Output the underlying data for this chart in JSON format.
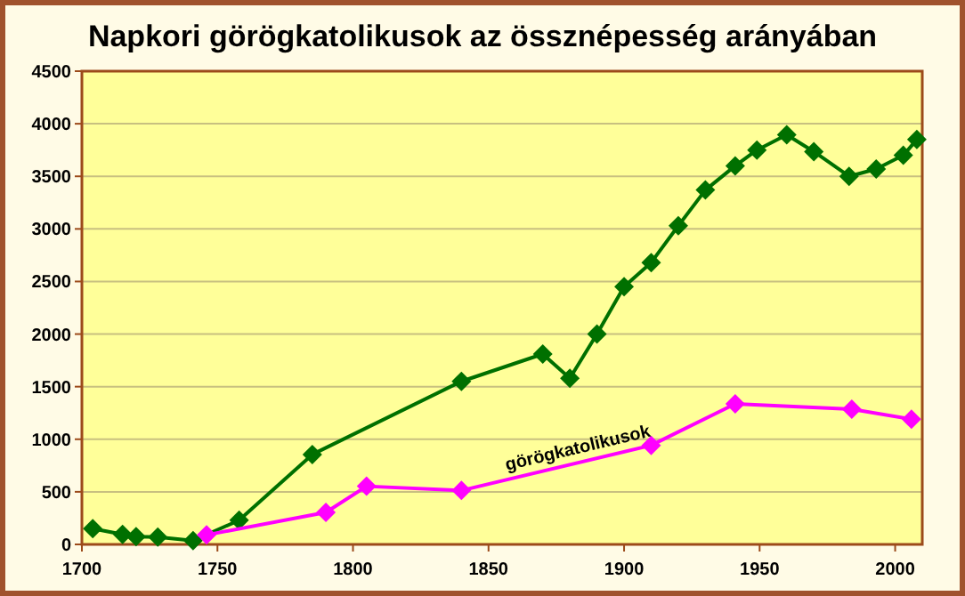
{
  "chart_data": {
    "type": "line",
    "title": "Napkori görögkatolikusok az össznépesség arányában",
    "marker": "diamond",
    "grid": "y",
    "xlim": [
      1700,
      2010
    ],
    "xticks": [
      1700,
      1750,
      1800,
      1850,
      1900,
      1950,
      2000
    ],
    "ylim": [
      0,
      4500
    ],
    "yticks": [
      0,
      500,
      1000,
      1500,
      2000,
      2500,
      3000,
      3500,
      4000,
      4500
    ],
    "series": [
      {
        "color": "#007000",
        "x": [
          1704,
          1715,
          1720,
          1728,
          1741,
          1758,
          1785,
          1840,
          1870,
          1880,
          1890,
          1900,
          1910,
          1920,
          1930,
          1941,
          1949,
          1960,
          1970,
          1983,
          1993,
          2003,
          2008
        ],
        "values": [
          150,
          95,
          75,
          70,
          35,
          230,
          855,
          1550,
          1810,
          1580,
          2000,
          2450,
          2680,
          3030,
          3370,
          3600,
          3750,
          3895,
          3735,
          3500,
          3570,
          3700,
          3850
        ]
      },
      {
        "name": "görögkatolikusok",
        "color": "#ff00ff",
        "x": [
          1746,
          1790,
          1805,
          1840,
          1910,
          1941,
          1984,
          2006
        ],
        "values": [
          90,
          305,
          553,
          513,
          942,
          1336,
          1286,
          1190
        ]
      }
    ]
  }
}
